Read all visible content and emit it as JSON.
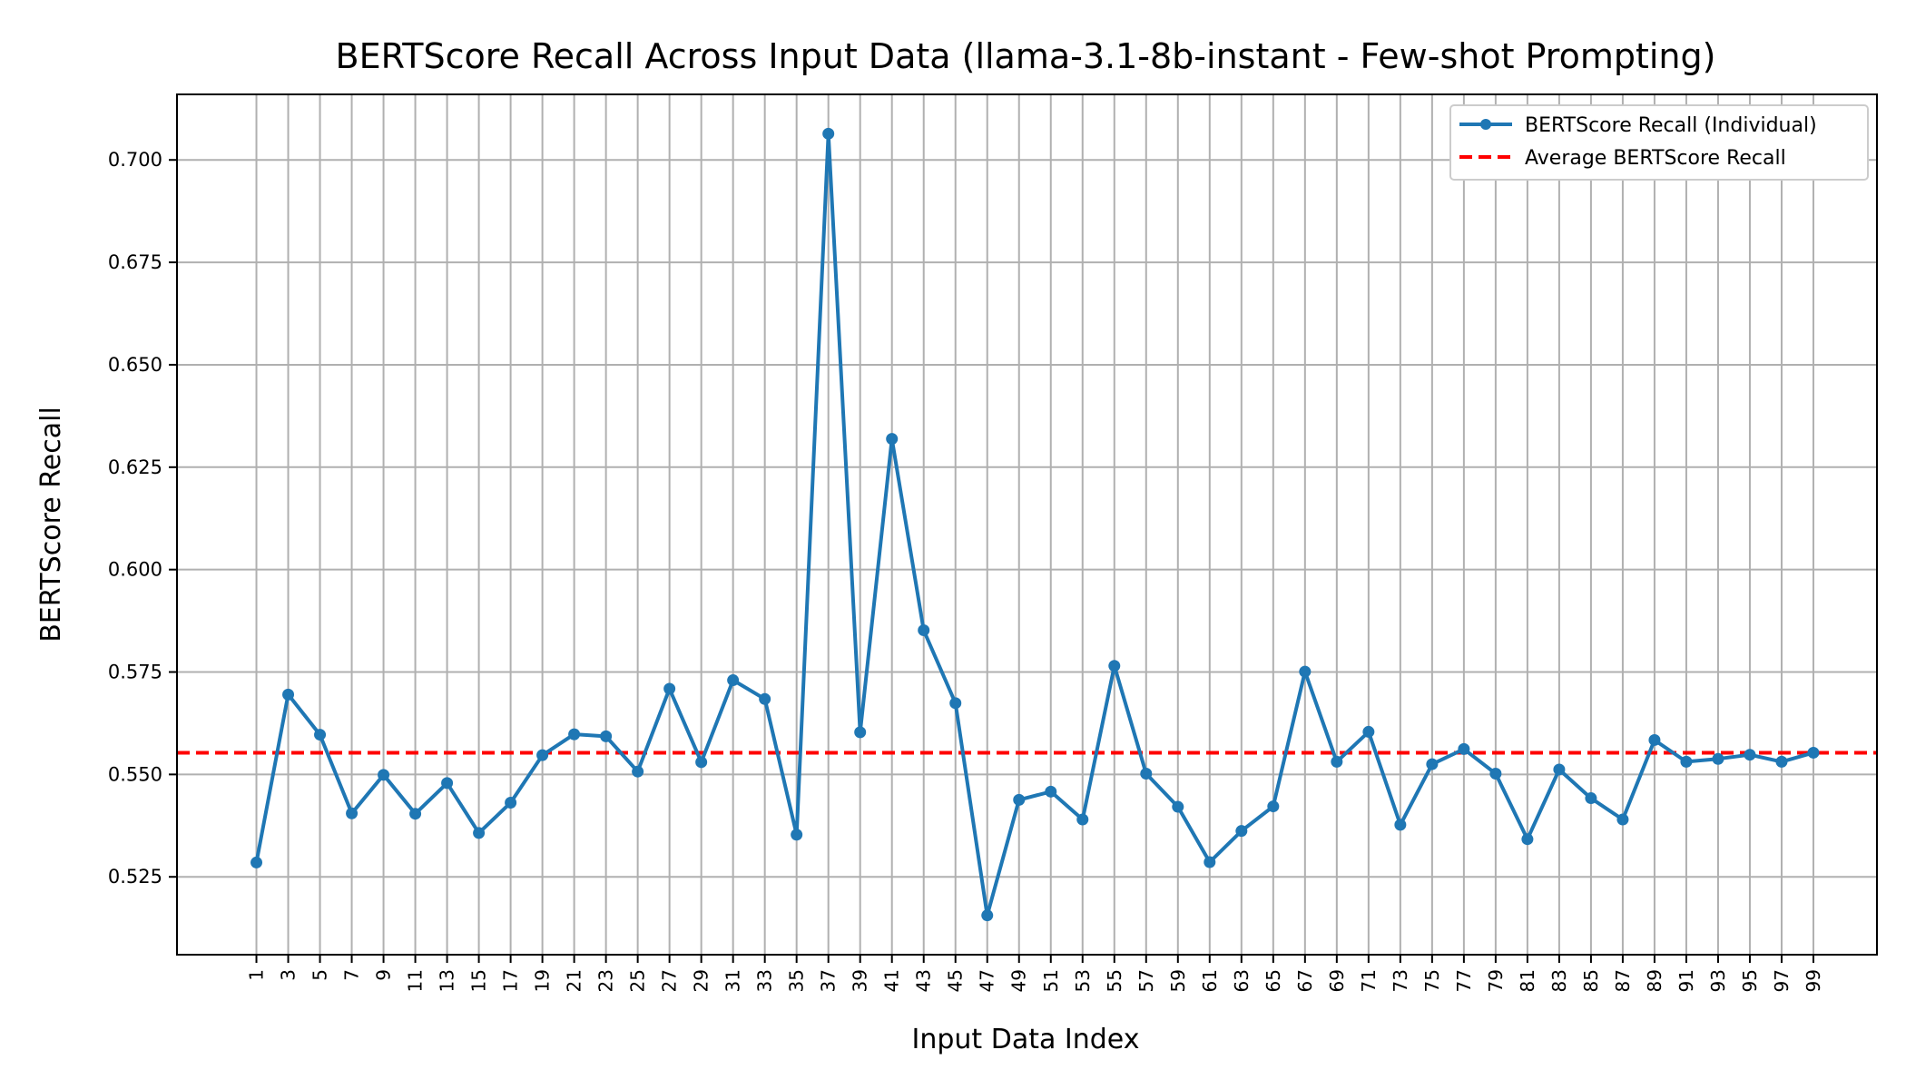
{
  "chart_data": {
    "type": "line",
    "title": "BERTScore Recall Across Input Data (llama-3.1-8b-instant - Few-shot Prompting)",
    "xlabel": "Input Data Index",
    "ylabel": "BERTScore Recall",
    "x": [
      1,
      3,
      5,
      7,
      9,
      11,
      13,
      15,
      17,
      19,
      21,
      23,
      25,
      27,
      29,
      31,
      33,
      35,
      37,
      39,
      41,
      43,
      45,
      47,
      49,
      51,
      53,
      55,
      57,
      59,
      61,
      63,
      65,
      67,
      69,
      71,
      73,
      75,
      77,
      79,
      81,
      83,
      85,
      87,
      89,
      91,
      93,
      95,
      97,
      99
    ],
    "x_ticks": [
      "1",
      "3",
      "5",
      "7",
      "9",
      "11",
      "13",
      "15",
      "17",
      "19",
      "21",
      "23",
      "25",
      "27",
      "29",
      "31",
      "33",
      "35",
      "37",
      "39",
      "41",
      "43",
      "45",
      "47",
      "49",
      "51",
      "53",
      "55",
      "57",
      "59",
      "61",
      "63",
      "65",
      "67",
      "69",
      "71",
      "73",
      "75",
      "77",
      "79",
      "81",
      "83",
      "85",
      "87",
      "89",
      "91",
      "93",
      "95",
      "97",
      "99"
    ],
    "y_ticks": [
      "0.525",
      "0.550",
      "0.575",
      "0.600",
      "0.625",
      "0.650",
      "0.675",
      "0.700"
    ],
    "y_tick_values": [
      0.525,
      0.55,
      0.575,
      0.6,
      0.625,
      0.65,
      0.675,
      0.7
    ],
    "xlim": [
      -4,
      103
    ],
    "ylim": [
      0.506,
      0.716
    ],
    "grid": true,
    "legend_position": "top-right",
    "series": [
      {
        "name": "BERTScore Recall (Individual)",
        "color": "#1f77b4",
        "style": "solid-with-markers",
        "values": [
          0.5285,
          0.5695,
          0.5597,
          0.5405,
          0.5499,
          0.5404,
          0.5479,
          0.5357,
          0.5431,
          0.5547,
          0.5598,
          0.5593,
          0.5507,
          0.5709,
          0.553,
          0.573,
          0.5684,
          0.5353,
          0.7064,
          0.5603,
          0.6319,
          0.5852,
          0.5674,
          0.5156,
          0.5438,
          0.5458,
          0.539,
          0.5765,
          0.5502,
          0.5421,
          0.5286,
          0.5362,
          0.5422,
          0.5751,
          0.5531,
          0.5604,
          0.5377,
          0.5525,
          0.5562,
          0.5502,
          0.5342,
          0.5512,
          0.5442,
          0.539,
          0.5584,
          0.5531,
          0.5538,
          0.5548,
          0.5531,
          0.5553
        ]
      },
      {
        "name": "Average BERTScore Recall",
        "color": "#ff0000",
        "style": "dashed",
        "value": 0.5553
      }
    ]
  }
}
